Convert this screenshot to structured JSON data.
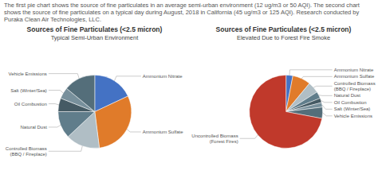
{
  "title": "The first pie chart shows the source of fine particulates in an average semi-urban environment (12 ug/m3 or 50 AQI). The second chart shows the source of fine particulates on a typical day during August, 2018 in California (45 ug/m3 or 125 AQI). Research conducted by Puraka Clean Air Technologies, LLC.",
  "chart_data": [
    {
      "type": "pie",
      "title": "Sources of Fine Particulates (<2.5 micron)",
      "subtitle": "Typical Semi-Urban Environment",
      "categories": [
        "Ammonium Nitrate",
        "Ammonium Sulfate",
        "Controlled Biomass\n(BBQ / Fireplace)",
        "Natural Dust",
        "Oil Combustion",
        "Salt (Winter/Sea)",
        "Vehicle Emissions"
      ],
      "values": [
        18,
        30,
        15,
        12,
        6,
        5,
        14
      ],
      "colors": [
        "#4472c4",
        "#e07b2a",
        "#b0bec5",
        "#607d8b",
        "#455a64",
        "#78909c",
        "#546e7a"
      ]
    },
    {
      "type": "pie",
      "title": "Sources of Fine Particulates (<2.5 micron)",
      "subtitle": "Elevated Due to Forest Fire Smoke",
      "categories": [
        "Ammonium Nitrate",
        "Ammonium Sulfate",
        "Controlled Biomass\n(BBQ / Fireplace)",
        "Natural Dust",
        "Oil Combustion",
        "Salt (Winter/Sea)",
        "Vehicle Emissions",
        "Uncontrolled Biomass\n(Forest Fires)"
      ],
      "values": [
        3,
        8,
        5,
        3,
        2,
        2,
        5,
        72
      ],
      "colors": [
        "#4472c4",
        "#e07b2a",
        "#b0bec5",
        "#607d8b",
        "#455a64",
        "#78909c",
        "#546e7a",
        "#c0392b"
      ]
    }
  ]
}
